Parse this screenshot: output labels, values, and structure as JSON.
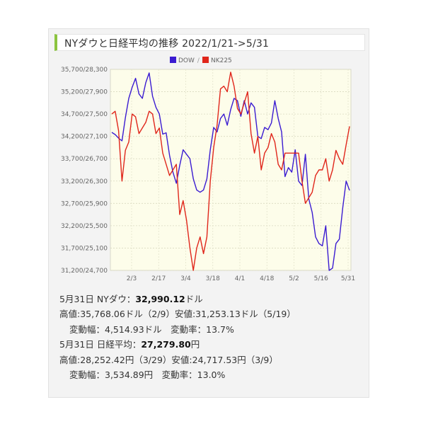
{
  "title": "NYダウと日経平均の推移 2022/1/21->5/31",
  "legend": [
    {
      "name": "DOW",
      "color": "#3a1bd1"
    },
    {
      "name": "NK225",
      "color": "#e0261b"
    }
  ],
  "legend_sep": "/",
  "chart_data": {
    "type": "line",
    "ylabels": [
      "35,700/28,300",
      "35,200/27,900",
      "34,700/27,500",
      "34,200/27,100",
      "33,700/26,700",
      "33,200/26,300",
      "32,700/25,900",
      "32,200/25,500",
      "31,700/25,100",
      "31,200/24,700"
    ],
    "xlabels": [
      "2/3",
      "2/17",
      "3/4",
      "3/18",
      "4/1",
      "4/18",
      "5/2",
      "5/16",
      "5/31"
    ],
    "grid": true,
    "series": [
      {
        "name": "DOW",
        "color": "#3a1bd1",
        "axis": "left",
        "values": [
          34290,
          34240,
          34160,
          34100,
          34620,
          35050,
          35300,
          35500,
          35150,
          35050,
          35400,
          35620,
          35100,
          34850,
          34700,
          34250,
          34280,
          33780,
          33400,
          33150,
          33550,
          33900,
          33800,
          33700,
          33250,
          33000,
          32950,
          33000,
          33250,
          33900,
          34400,
          34300,
          34600,
          34700,
          34450,
          34800,
          35050,
          35000,
          34650,
          35000,
          34700,
          34950,
          34850,
          34200,
          34150,
          34400,
          34350,
          34500,
          35000,
          34600,
          34300,
          33300,
          33500,
          33400,
          33900,
          33200,
          33100,
          33800,
          32800,
          32500,
          31950,
          31800,
          31750,
          32200,
          31200,
          31250,
          31800,
          31900,
          32600,
          33200,
          32990
        ]
      },
      {
        "name": "NK225",
        "color": "#e0261b",
        "axis": "right",
        "values": [
          27500,
          27550,
          27200,
          26300,
          26850,
          27000,
          27500,
          27450,
          27150,
          27250,
          27350,
          27550,
          27500,
          27150,
          27250,
          26800,
          26600,
          26400,
          26500,
          26600,
          25700,
          25950,
          25600,
          25100,
          24700,
          25100,
          25300,
          25000,
          25300,
          26300,
          26900,
          27300,
          27950,
          28000,
          27900,
          28250,
          28000,
          27600,
          27500,
          27700,
          27900,
          27150,
          26800,
          27100,
          26500,
          26800,
          26900,
          27150,
          27000,
          26600,
          26500,
          26800,
          26800,
          26800,
          26800,
          26800,
          26300,
          25900,
          26000,
          26100,
          26400,
          26500,
          26500,
          26700,
          26300,
          26500,
          26850,
          26700,
          26600,
          26950,
          27280
        ]
      }
    ]
  },
  "stats": {
    "dow_line_label": "5月31日 NYダウ：",
    "dow_value": "32,990.12",
    "dow_unit": "ドル",
    "dow_range": "高値:35,768.06ドル（2/9）安値:31,253.13ドル（5/19）",
    "dow_change": "変動幅：4,514.93ドル　変動率：13.7%",
    "nk_line_label": "5月31日 日経平均：",
    "nk_value": "27,279.80",
    "nk_unit": "円",
    "nk_range": "高値:28,252.42円（3/29）安値:24,717.53円（3/9）",
    "nk_change": "変動幅：3,534.89円　変動率：13.0%"
  }
}
